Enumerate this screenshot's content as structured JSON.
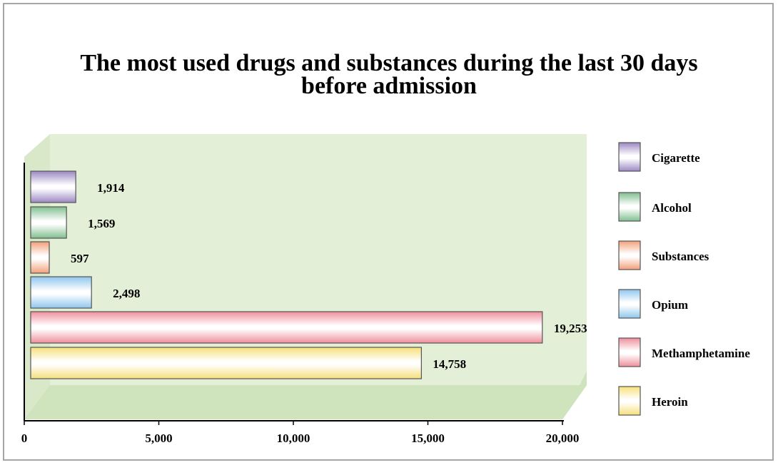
{
  "chart_data": {
    "type": "bar",
    "orientation": "horizontal",
    "title_line1": "The most used drugs and substances during the last 30 days",
    "title_line2": "before admission",
    "categories": [
      "Cigarette",
      "Alcohol",
      "Substances",
      "Opium",
      "Methamphetamine",
      "Heroin"
    ],
    "values": [
      1914,
      1569,
      597,
      2498,
      19253,
      14758
    ],
    "value_labels": [
      "1,914",
      "1,569",
      "597",
      "2,498",
      "19,253",
      "14,758"
    ],
    "xlim": [
      0,
      20000
    ],
    "xticks": [
      0,
      5000,
      10000,
      15000,
      20000
    ],
    "xtick_labels": [
      "0",
      "5,000",
      "10,000",
      "15,000",
      "20,000"
    ],
    "legend_position": "right",
    "grid": false,
    "colors": {
      "Cigarette": "#9b88c4",
      "Alcohol": "#7fbf8f",
      "Substances": "#f2a07a",
      "Opium": "#8fc6ee",
      "Methamphetamine": "#ee8f9c",
      "Heroin": "#f5e07a"
    },
    "plot_background": "#e4efd8"
  }
}
